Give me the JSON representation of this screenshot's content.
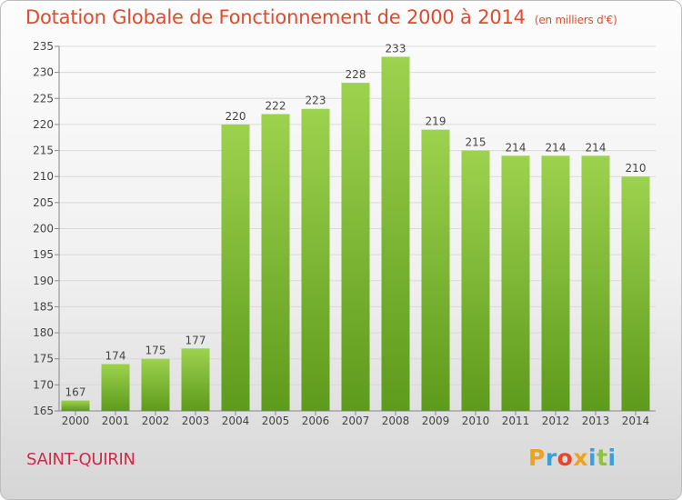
{
  "header": {
    "title": "Dotation Globale de Fonctionnement de 2000 à 2014",
    "unit": "(en milliers d'€)"
  },
  "footer": {
    "commune": "SAINT-QUIRIN",
    "logo_letters": [
      "P",
      "r",
      "o",
      "x",
      "i",
      "t",
      "i"
    ],
    "logo_colors": [
      "#f0a21b",
      "#3aa0d8",
      "#e8452b",
      "#f0a21b",
      "#3aa0d8",
      "#8cc33f",
      "#3aa0d8"
    ]
  },
  "colors": {
    "bar_light": "#9dd24e",
    "bar_dark": "#5e9a1c",
    "title": "#e14a2e",
    "commune": "#cc2b4a"
  },
  "chart_data": {
    "type": "bar",
    "categories": [
      "2000",
      "2001",
      "2002",
      "2003",
      "2004",
      "2005",
      "2006",
      "2007",
      "2008",
      "2009",
      "2010",
      "2011",
      "2012",
      "2013",
      "2014"
    ],
    "values": [
      167,
      174,
      175,
      177,
      220,
      222,
      223,
      228,
      233,
      219,
      215,
      214,
      214,
      214,
      210
    ],
    "ylim": [
      165,
      235
    ],
    "yticks": [
      165,
      170,
      175,
      180,
      185,
      190,
      195,
      200,
      205,
      210,
      215,
      220,
      225,
      230,
      235
    ],
    "grid": true,
    "data_labels": true
  }
}
